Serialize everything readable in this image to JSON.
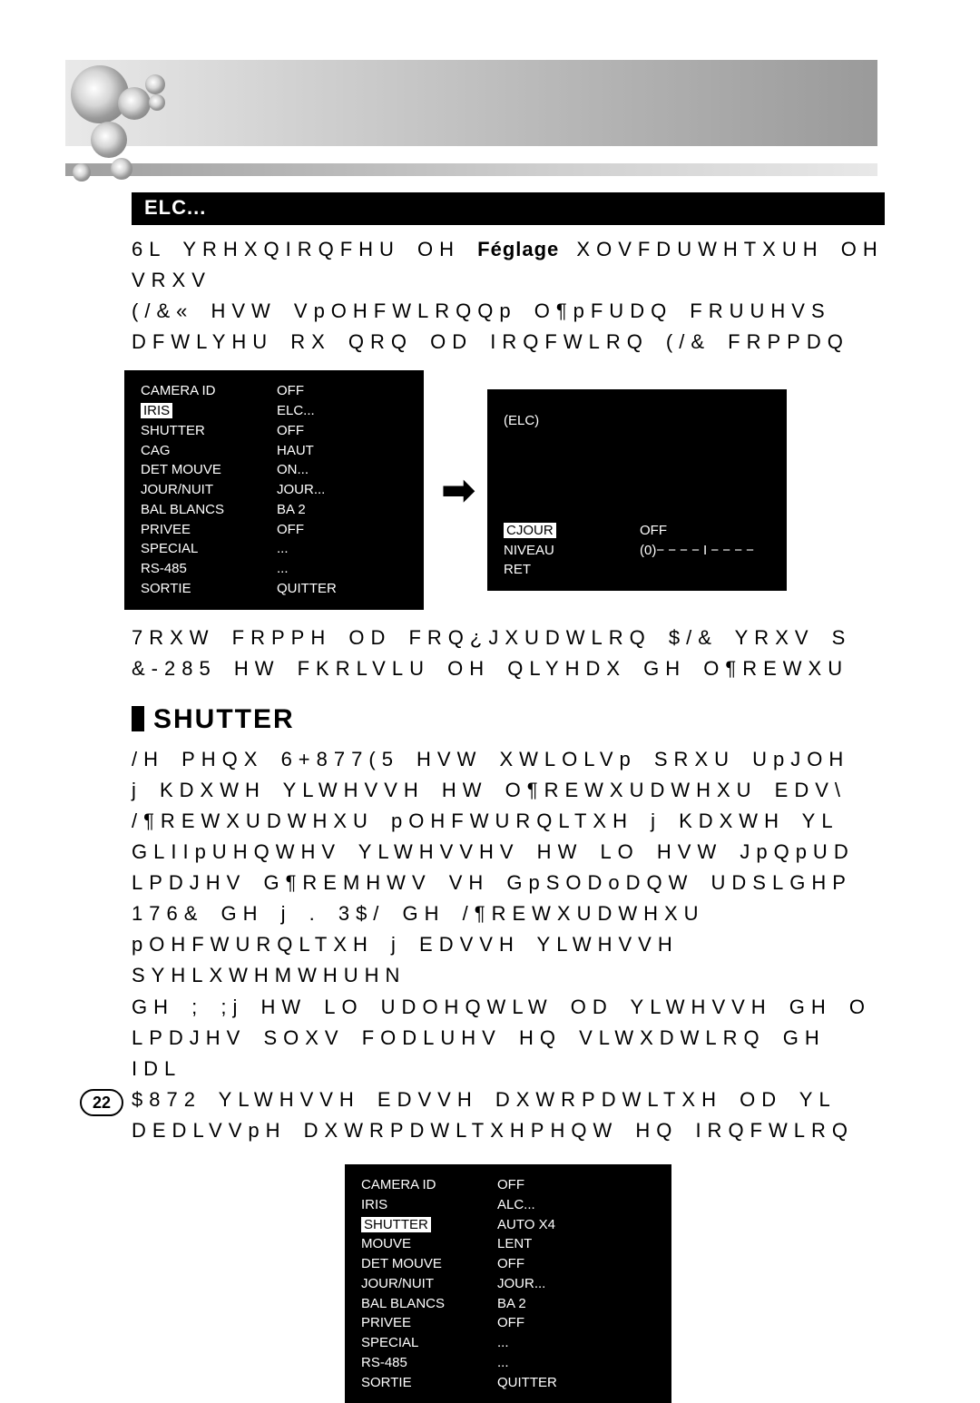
{
  "page_number": "22",
  "elc": {
    "heading": "ELC...",
    "para1_a": "6L YRHXQIRQFHU OH ",
    "para1_bold": "Féglage",
    "para1_b": " XOVFDUWHTXUH OH VRXV",
    "para2": "(/&« HVW VpOHFWLRQQp O¶pFUDQ FRUUHVS",
    "para3": "DFWLYHU RX QRQ OD IRQFWLRQ (/& FRPPDQ",
    "para4": "7RXW FRPPH OD FRQ¿JXUDWLRQ $/& YRXV S",
    "para5": "&-285 HW FKRLVLU OH QLYHDX GH O¶REWXU"
  },
  "menu_left": {
    "rows": [
      {
        "label": "CAMERA ID",
        "val": "OFF",
        "hl": false
      },
      {
        "label": "IRIS",
        "val": "ELC...",
        "hl": true
      },
      {
        "label": "SHUTTER",
        "val": "OFF",
        "hl": false
      },
      {
        "label": "CAG",
        "val": "HAUT",
        "hl": false
      },
      {
        "label": "DET MOUVE",
        "val": "ON...",
        "hl": false
      },
      {
        "label": "JOUR/NUIT",
        "val": "JOUR...",
        "hl": false
      },
      {
        "label": "BAL BLANCS",
        "val": "BA 2",
        "hl": false
      },
      {
        "label": "PRIVEE",
        "val": "OFF",
        "hl": false
      },
      {
        "label": "SPECIAL",
        "val": "...",
        "hl": false
      },
      {
        "label": "RS-485",
        "val": "...",
        "hl": false
      },
      {
        "label": "SORTIE",
        "val": "QUITTER",
        "hl": false
      }
    ]
  },
  "menu_right": {
    "top": "(ELC)",
    "rows": [
      {
        "label": "CJOUR",
        "val": "OFF",
        "hl": true
      },
      {
        "label": "NIVEAU",
        "val": "(0)− − − − I − − − −",
        "hl": false
      },
      {
        "label": "RET",
        "val": "",
        "hl": false
      }
    ]
  },
  "shutter": {
    "heading": "SHUTTER",
    "lines": [
      "/H PHQX 6+877(5 HVW XWLOLVp SRXU UpJOH",
      "j KDXWH YLWHVVH HW O¶REWXUDWHXU EDV\\",
      "/¶REWXUDWHXU pOHFWURQLTXH j KDXWH YL",
      "GLIIpUHQWHV YLWHVVHV HW LO HVW JpQpUD",
      "LPDJHV G¶REMHWV VH GpSODoDQW UDSLGHP",
      " 176&  GH      j    . 3$/  GH   /¶REWXUDWHXU",
      "pOHFWURQLTXH j EDVVH YLWHVVH SYHLXWHMWHUHN",
      "GH ; ;j    HW LO UDOHQWLW OD YLWHVVH GH O",
      "LPDJHV SOXV FODLUHV HQ VLWXDWLRQ GH IDL",
      "$872  YLWHVVH EDVVH DXWRPDWLTXH  OD YL",
      "DEDLVVpH DXWRPDWLTXHPHQW HQ IRQFWLRQ"
    ]
  },
  "menu_single": {
    "rows": [
      {
        "label": "CAMERA ID",
        "val": "OFF",
        "hl": false
      },
      {
        "label": "IRIS",
        "val": "ALC...",
        "hl": false
      },
      {
        "label": "SHUTTER",
        "val": "AUTO X4",
        "hl": true
      },
      {
        "label": "MOUVE",
        "val": "LENT",
        "hl": false
      },
      {
        "label": "DET MOUVE",
        "val": "OFF",
        "hl": false
      },
      {
        "label": "JOUR/NUIT",
        "val": "JOUR...",
        "hl": false
      },
      {
        "label": "BAL BLANCS",
        "val": "BA 2",
        "hl": false
      },
      {
        "label": "PRIVEE",
        "val": "OFF",
        "hl": false
      },
      {
        "label": "SPECIAL",
        "val": "...",
        "hl": false
      },
      {
        "label": "RS-485",
        "val": "...",
        "hl": false
      },
      {
        "label": "SORTIE",
        "val": "QUITTER",
        "hl": false
      }
    ]
  }
}
